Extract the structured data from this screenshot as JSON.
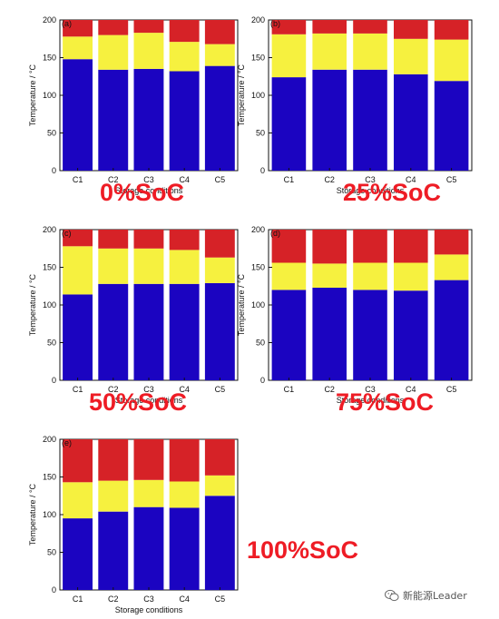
{
  "colors": {
    "blue": "#1b04c1",
    "yellow": "#f6f13f",
    "red": "#d62227",
    "soc_label": "#ee1c25"
  },
  "watermark": {
    "text": "新能源Leader",
    "icon": "wechat-icon"
  },
  "chart_data": [
    {
      "type": "bar",
      "stacked": true,
      "panel_label": "(a)",
      "overlay_label": "0%SoC",
      "categories": [
        "C1",
        "C2",
        "C3",
        "C4",
        "C5"
      ],
      "xlabel": "Storage conditions",
      "ylabel": "Temperature / °C",
      "ylim": [
        0,
        200
      ],
      "yticks": [
        0,
        50,
        100,
        150,
        200
      ],
      "segments": [
        {
          "color": "blue",
          "values": [
            148,
            134,
            135,
            132,
            139
          ]
        },
        {
          "color": "yellow",
          "values": [
            30,
            46,
            48,
            39,
            29
          ]
        },
        {
          "color": "red",
          "values": [
            22,
            20,
            17,
            29,
            32
          ]
        }
      ]
    },
    {
      "type": "bar",
      "stacked": true,
      "panel_label": "(b)",
      "overlay_label": "25%SoC",
      "categories": [
        "C1",
        "C2",
        "C3",
        "C4",
        "C5"
      ],
      "xlabel": "Storage conditions",
      "ylabel": "Temperature / °C",
      "ylim": [
        0,
        200
      ],
      "yticks": [
        0,
        50,
        100,
        150,
        200
      ],
      "segments": [
        {
          "color": "blue",
          "values": [
            124,
            134,
            134,
            128,
            119
          ]
        },
        {
          "color": "yellow",
          "values": [
            57,
            48,
            48,
            47,
            55
          ]
        },
        {
          "color": "red",
          "values": [
            19,
            18,
            18,
            25,
            26
          ]
        }
      ]
    },
    {
      "type": "bar",
      "stacked": true,
      "panel_label": "(c)",
      "overlay_label": "50%SoC",
      "categories": [
        "C1",
        "C2",
        "C3",
        "C4",
        "C5"
      ],
      "xlabel": "Storage conditions",
      "ylabel": "Temperature / °C",
      "ylim": [
        0,
        200
      ],
      "yticks": [
        0,
        50,
        100,
        150,
        200
      ],
      "segments": [
        {
          "color": "blue",
          "values": [
            114,
            128,
            128,
            128,
            129
          ]
        },
        {
          "color": "yellow",
          "values": [
            64,
            47,
            47,
            45,
            34
          ]
        },
        {
          "color": "red",
          "values": [
            22,
            25,
            25,
            27,
            37
          ]
        }
      ]
    },
    {
      "type": "bar",
      "stacked": true,
      "panel_label": "(d)",
      "overlay_label": "75%SoC",
      "categories": [
        "C1",
        "C2",
        "C3",
        "C4",
        "C5"
      ],
      "xlabel": "Storage conditions",
      "ylabel": "Temperature / °C",
      "ylim": [
        0,
        200
      ],
      "yticks": [
        0,
        50,
        100,
        150,
        200
      ],
      "segments": [
        {
          "color": "blue",
          "values": [
            120,
            123,
            120,
            119,
            133
          ]
        },
        {
          "color": "yellow",
          "values": [
            36,
            32,
            36,
            37,
            34
          ]
        },
        {
          "color": "red",
          "values": [
            44,
            45,
            44,
            44,
            33
          ]
        }
      ]
    },
    {
      "type": "bar",
      "stacked": true,
      "panel_label": "(e)",
      "overlay_label": "100%SoC",
      "categories": [
        "C1",
        "C2",
        "C3",
        "C4",
        "C5"
      ],
      "xlabel": "Storage conditions",
      "ylabel": "Temperature / °C",
      "ylim": [
        0,
        200
      ],
      "yticks": [
        0,
        50,
        100,
        150,
        200
      ],
      "segments": [
        {
          "color": "blue",
          "values": [
            95,
            104,
            110,
            109,
            125
          ]
        },
        {
          "color": "yellow",
          "values": [
            48,
            41,
            36,
            35,
            27
          ]
        },
        {
          "color": "red",
          "values": [
            57,
            55,
            54,
            56,
            48
          ]
        }
      ]
    }
  ]
}
